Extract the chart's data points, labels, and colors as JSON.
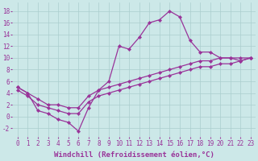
{
  "x_values": [
    0,
    1,
    2,
    3,
    4,
    5,
    6,
    7,
    8,
    9,
    10,
    11,
    12,
    13,
    14,
    15,
    16,
    17,
    18,
    19,
    20,
    21,
    22,
    23
  ],
  "curve_y": [
    5,
    4,
    1,
    0.5,
    -0.5,
    -1,
    -2.5,
    1.5,
    4.5,
    6,
    12,
    11.5,
    13.5,
    16,
    16.5,
    18,
    17,
    13,
    11,
    11,
    10,
    10,
    9.5,
    10
  ],
  "line1_y": [
    5,
    4,
    3,
    2,
    2,
    1.5,
    1.5,
    3.5,
    4.5,
    5,
    5.5,
    6,
    6.5,
    7,
    7.5,
    8,
    8.5,
    9,
    9.5,
    9.5,
    10,
    10,
    10,
    10
  ],
  "line2_y": [
    4.5,
    3.5,
    2,
    1.5,
    1,
    0.5,
    0.5,
    2.5,
    3.5,
    4,
    4.5,
    5,
    5.5,
    6,
    6.5,
    7,
    7.5,
    8,
    8.5,
    8.5,
    9,
    9,
    9.5,
    10
  ],
  "line_color": "#993399",
  "bg_color": "#cce8e8",
  "grid_color": "#aacece",
  "xlabel": "Windchill (Refroidissement éolien,°C)",
  "xlabel_fontsize": 6.5,
  "tick_fontsize": 5.5,
  "ylim": [
    -3.5,
    19.5
  ],
  "yticks": [
    -2,
    0,
    2,
    4,
    6,
    8,
    10,
    12,
    14,
    16,
    18
  ],
  "xticks": [
    0,
    1,
    2,
    3,
    4,
    5,
    6,
    7,
    8,
    9,
    10,
    11,
    12,
    13,
    14,
    15,
    16,
    17,
    18,
    19,
    20,
    21,
    22,
    23
  ],
  "xlim": [
    -0.5,
    23.5
  ]
}
